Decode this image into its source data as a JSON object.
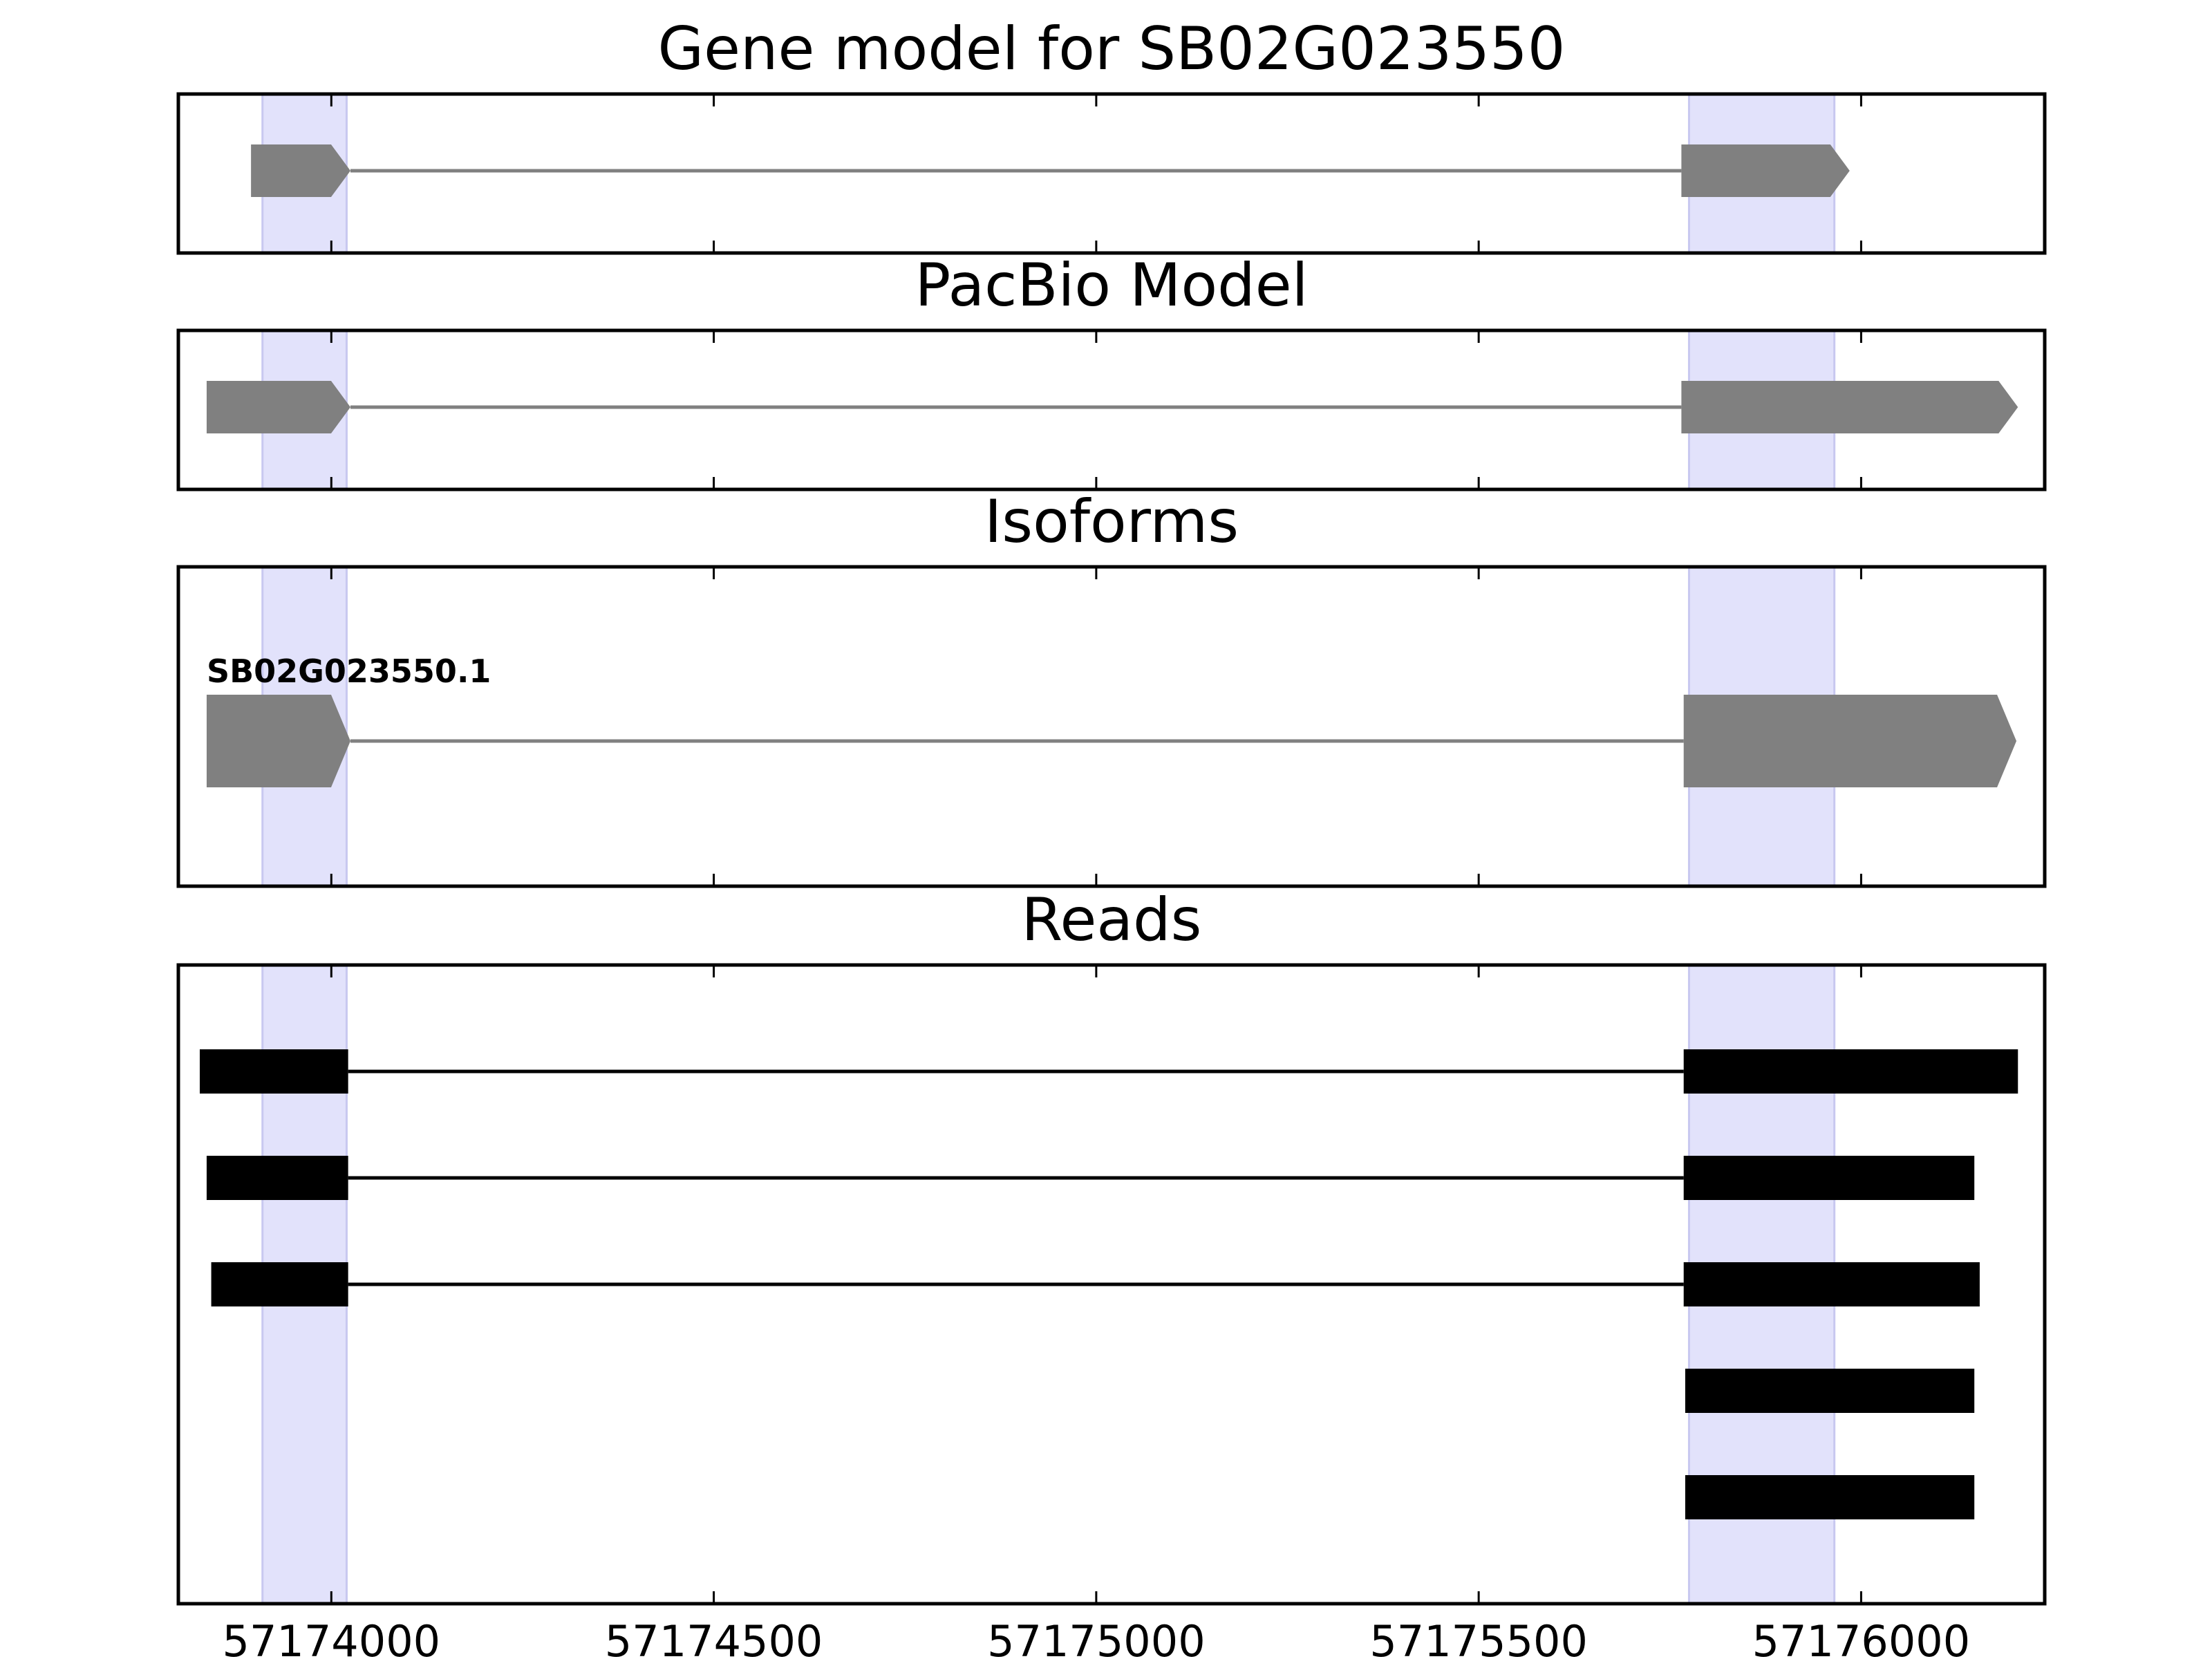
{
  "chart_data": [
    {
      "type": "gene-track",
      "title": "Gene model for SB02G023550",
      "xlim": [
        57173800,
        57176240
      ],
      "highlight_regions": [
        [
          57173910,
          57174020
        ],
        [
          57175775,
          57175965
        ]
      ],
      "exon_color": "#808080",
      "intron_color": "#808080",
      "highlight_color": "#e2e2fb",
      "features": [
        {
          "exons": [
            [
              57173895,
              57174025
            ],
            [
              57175765,
              57175985
            ]
          ],
          "strand": "+"
        }
      ]
    },
    {
      "type": "gene-track",
      "title": "PacBio Model",
      "xlim": [
        57173800,
        57176240
      ],
      "highlight_regions": [
        [
          57173910,
          57174020
        ],
        [
          57175775,
          57175965
        ]
      ],
      "exon_color": "#808080",
      "intron_color": "#808080",
      "features": [
        {
          "exons": [
            [
              57173837,
              57174025
            ],
            [
              57175765,
              57176205
            ]
          ],
          "strand": "+"
        }
      ]
    },
    {
      "type": "gene-track",
      "title": "Isoforms",
      "xlim": [
        57173800,
        57176240
      ],
      "highlight_regions": [
        [
          57173910,
          57174020
        ],
        [
          57175775,
          57175965
        ]
      ],
      "exon_color": "#808080",
      "intron_color": "#808080",
      "features": [
        {
          "label": "SB02G023550.1",
          "exons": [
            [
              57173837,
              57174025
            ],
            [
              57175768,
              57176203
            ]
          ],
          "strand": "+"
        }
      ]
    },
    {
      "type": "read-track",
      "title": "Reads",
      "xlim": [
        57173800,
        57176240
      ],
      "highlight_regions": [
        [
          57173910,
          57174020
        ],
        [
          57175775,
          57175965
        ]
      ],
      "xticks": [
        "57174000",
        "57174500",
        "57175000",
        "57175500",
        "57176000"
      ],
      "xtick_values": [
        57174000,
        57174500,
        57175000,
        57175500,
        57176000
      ],
      "read_color": "#000000",
      "reads": [
        {
          "exons": [
            [
              57173828,
              57174022
            ],
            [
              57175768,
              57176205
            ]
          ]
        },
        {
          "exons": [
            [
              57173837,
              57174022
            ],
            [
              57175768,
              57176148
            ]
          ]
        },
        {
          "exons": [
            [
              57173843,
              57174022
            ],
            [
              57175768,
              57176155
            ]
          ]
        },
        {
          "exons": [
            [
              57175770,
              57176148
            ]
          ]
        },
        {
          "exons": [
            [
              57175770,
              57176148
            ]
          ]
        }
      ]
    }
  ]
}
